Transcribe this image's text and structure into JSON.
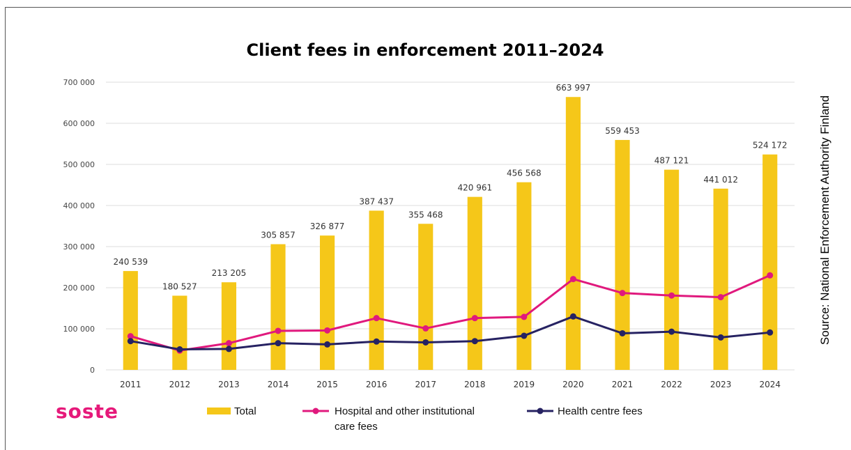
{
  "title": "Client fees in enforcement 2011–2024",
  "source": "Source: National Enforcement Authority Finland",
  "logo_text": "soste",
  "colors": {
    "total": "#f5c719",
    "hospital": "#e0197d",
    "health": "#262262",
    "logo": "#e6197a"
  },
  "legend": {
    "total": "Total",
    "hospital_line1": "Hospital and other institutional",
    "hospital_line2": "care fees",
    "health": "Health centre fees"
  },
  "chart_data": {
    "type": "bar",
    "categories": [
      "2011",
      "2012",
      "2013",
      "2014",
      "2015",
      "2016",
      "2017",
      "2018",
      "2019",
      "2020",
      "2021",
      "2022",
      "2023",
      "2024"
    ],
    "series": [
      {
        "name": "Total",
        "type": "bar",
        "values": [
          240539,
          180527,
          213205,
          305857,
          326877,
          387437,
          355468,
          420961,
          456568,
          663997,
          559453,
          487121,
          441012,
          524172
        ],
        "labels": [
          "240 539",
          "180 527",
          "213 205",
          "305 857",
          "326 877",
          "387 437",
          "355 468",
          "420 961",
          "456 568",
          "663 997",
          "559 453",
          "487 121",
          "441 012",
          "524 172"
        ]
      },
      {
        "name": "Hospital and other institutional care fees",
        "type": "line",
        "values": [
          82000,
          47000,
          65000,
          95000,
          96000,
          126000,
          101000,
          126000,
          129000,
          221000,
          187000,
          181000,
          177000,
          230000
        ]
      },
      {
        "name": "Health centre fees",
        "type": "line",
        "values": [
          70000,
          50000,
          51000,
          65000,
          62000,
          69000,
          67000,
          70000,
          83000,
          130000,
          89000,
          93000,
          79000,
          91000
        ]
      }
    ],
    "y_ticks": [
      "0",
      "100 000",
      "200 000",
      "300 000",
      "400 000",
      "500 000",
      "600 000",
      "700 000"
    ],
    "ylim": [
      0,
      700000
    ],
    "grid": true,
    "legend_position": "bottom"
  }
}
